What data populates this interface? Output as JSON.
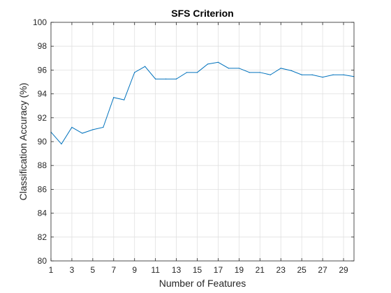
{
  "chart_data": {
    "type": "line",
    "title": "SFS Criterion",
    "xlabel": "Number of Features",
    "ylabel": "Classification Accuracy (%)",
    "xlim": [
      1,
      30
    ],
    "ylim": [
      80,
      100
    ],
    "xticks": [
      1,
      3,
      5,
      7,
      9,
      11,
      13,
      15,
      17,
      19,
      21,
      23,
      25,
      27,
      29
    ],
    "yticks": [
      80,
      82,
      84,
      86,
      88,
      90,
      92,
      94,
      96,
      98,
      100
    ],
    "grid": true,
    "line_color": "#0072BD",
    "series": [
      {
        "x": [
          1,
          2,
          3,
          4,
          5,
          6,
          7,
          8,
          9,
          10,
          11,
          12,
          13,
          14,
          15,
          16,
          17,
          18,
          19,
          20,
          21,
          22,
          23,
          24,
          25,
          26,
          27,
          28,
          29,
          30
        ],
        "values": [
          90.8,
          89.8,
          91.2,
          90.7,
          91.0,
          91.2,
          93.7,
          93.5,
          95.8,
          96.3,
          95.25,
          95.25,
          95.25,
          95.8,
          95.8,
          96.5,
          96.65,
          96.15,
          96.15,
          95.8,
          95.8,
          95.6,
          96.15,
          95.95,
          95.6,
          95.6,
          95.4,
          95.6,
          95.6,
          95.45
        ]
      }
    ]
  }
}
